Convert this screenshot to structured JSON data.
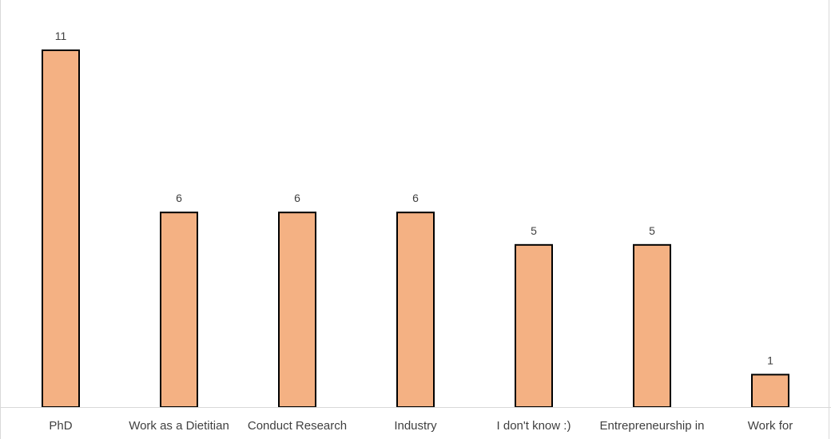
{
  "chart_data": {
    "type": "bar",
    "title": "",
    "xlabel": "",
    "ylabel": "",
    "categories": [
      "PhD",
      "Work as a Dietitian",
      "Conduct Research",
      "Industry",
      "I don't know :)",
      "Entrepreneurship in",
      "Work for"
    ],
    "values": [
      11,
      6,
      6,
      6,
      5,
      5,
      1
    ],
    "data_labels": [
      "11",
      "6",
      "6",
      "6",
      "5",
      "5",
      "1"
    ],
    "ylim": [
      0,
      11
    ],
    "grid": false,
    "legend": "none",
    "colors": {
      "bar_fill": "#f4b183",
      "bar_edge": "#000000",
      "axis": "#d9d9d9",
      "text": "#404040"
    }
  }
}
